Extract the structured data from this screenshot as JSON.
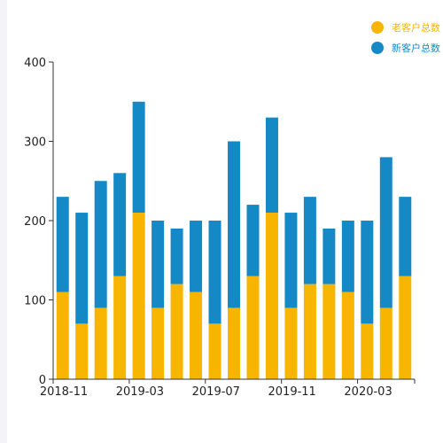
{
  "chart_data": {
    "type": "bar",
    "stacked": true,
    "title": "",
    "xlabel": "",
    "ylabel": "",
    "ylim": [
      0,
      400
    ],
    "yticks": [
      0,
      100,
      200,
      300,
      400
    ],
    "xtick_labels": [
      {
        "index": 0,
        "label": "2018-11"
      },
      {
        "index": 4,
        "label": "2019-03"
      },
      {
        "index": 8,
        "label": "2019-07"
      },
      {
        "index": 12,
        "label": "2019-11"
      },
      {
        "index": 16,
        "label": "2020-03"
      }
    ],
    "categories": [
      "2018-11",
      "2018-12",
      "2019-01",
      "2019-02",
      "2019-03",
      "2019-04",
      "2019-05",
      "2019-06",
      "2019-07",
      "2019-08",
      "2019-09",
      "2019-10",
      "2019-11",
      "2019-12",
      "2020-01",
      "2020-02",
      "2020-03",
      "2020-04",
      "2020-05"
    ],
    "series": [
      {
        "name": "老客户总数",
        "color": "#f7b500",
        "values": [
          110,
          70,
          90,
          130,
          210,
          90,
          120,
          110,
          70,
          90,
          130,
          210,
          90,
          120,
          120,
          110,
          70,
          90,
          130
        ]
      },
      {
        "name": "新客户总数",
        "color": "#1589c6",
        "values": [
          120,
          140,
          160,
          130,
          140,
          110,
          70,
          90,
          130,
          210,
          90,
          120,
          120,
          110,
          70,
          90,
          130,
          190,
          100
        ]
      }
    ],
    "legend_position": "top-right",
    "grid": false
  }
}
